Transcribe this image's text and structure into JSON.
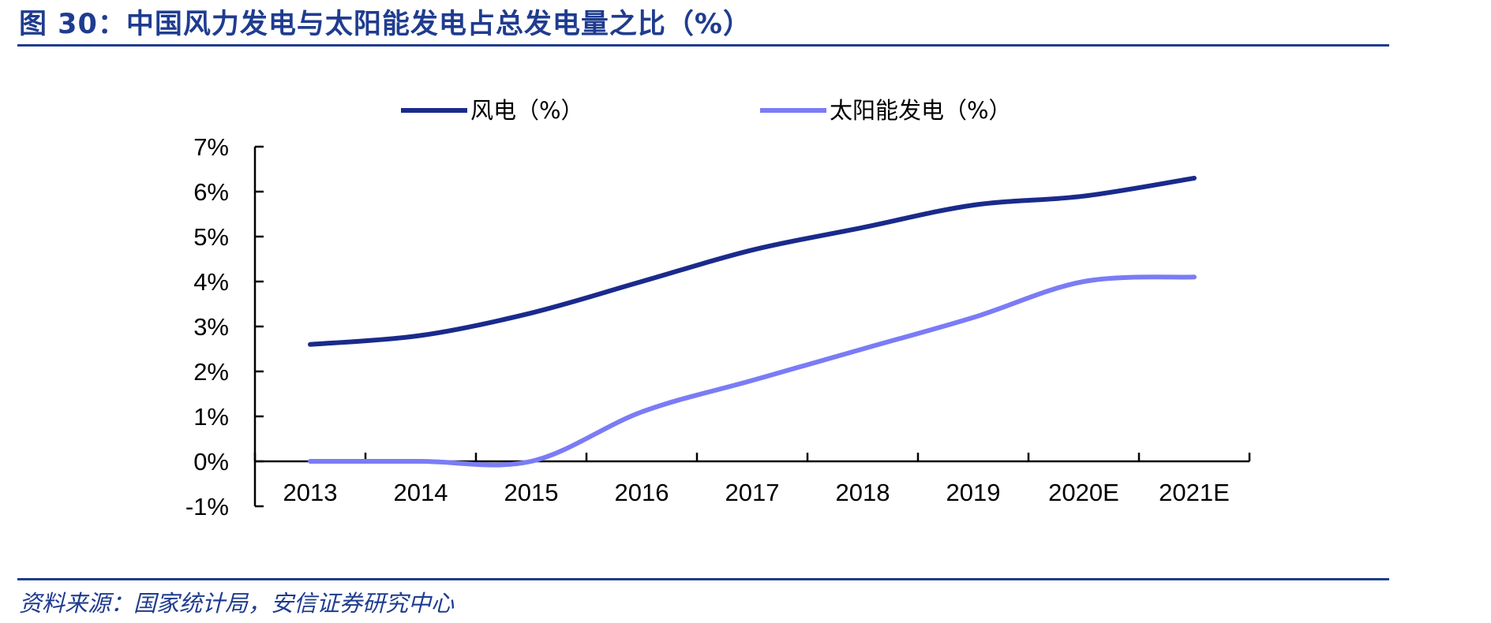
{
  "header": {
    "title": "图 30：中国风力发电与太阳能发电占总发电量之比（%）"
  },
  "footer": {
    "source": "资料来源：国家统计局，安信证券研究中心"
  },
  "chart_data": {
    "type": "line",
    "categories": [
      "2013",
      "2014",
      "2015",
      "2016",
      "2017",
      "2018",
      "2019",
      "2020E",
      "2021E"
    ],
    "series": [
      {
        "name": "风电（%）",
        "color": "#1a2a8c",
        "values": [
          2.6,
          2.8,
          3.3,
          4.0,
          4.7,
          5.2,
          5.7,
          5.9,
          6.3
        ]
      },
      {
        "name": "太阳能发电（%）",
        "color": "#7b7cf5",
        "values": [
          0.0,
          0.0,
          0.0,
          1.1,
          1.8,
          2.5,
          3.2,
          4.0,
          4.1
        ]
      }
    ],
    "ylim": [
      -1,
      7
    ],
    "yticks": [
      -1,
      0,
      1,
      2,
      3,
      4,
      5,
      6,
      7
    ],
    "ytick_labels": [
      "-1%",
      "0%",
      "1%",
      "2%",
      "3%",
      "4%",
      "5%",
      "6%",
      "7%"
    ],
    "legend_position": "top",
    "grid": false
  }
}
